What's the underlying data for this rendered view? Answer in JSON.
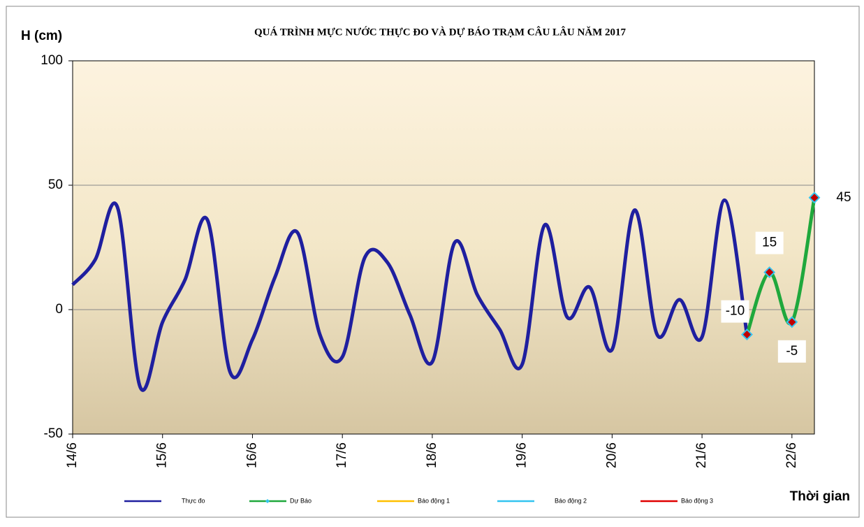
{
  "chart_data": {
    "type": "line",
    "title": "QUÁ TRÌNH MỰC NƯỚC THỰC ĐO VÀ DỰ BÁO TRẠM CÂU LÂU NĂM  2017",
    "y_label": "H (cm)",
    "x_label": "Thời gian",
    "categories": [
      "14/6",
      null,
      null,
      null,
      "15/6",
      null,
      null,
      null,
      "16/6",
      null,
      null,
      null,
      "17/6",
      null,
      null,
      null,
      "18/6",
      null,
      null,
      null,
      "19/6",
      null,
      null,
      null,
      "20/6",
      null,
      null,
      null,
      "21/6",
      null,
      null,
      null,
      "22/6",
      null
    ],
    "series": [
      {
        "name": "Thực đo",
        "color": "#1f1f9f",
        "values": [
          10,
          20,
          41,
          -31,
          -5,
          12,
          36,
          -25,
          -12,
          13,
          31,
          -10,
          -19,
          21,
          19,
          -2,
          -21,
          27,
          6,
          -8,
          -22,
          34,
          -3,
          9,
          -16,
          40,
          -10,
          4,
          -11,
          44,
          -10,
          null,
          null,
          null
        ]
      },
      {
        "name": "Dự Báo",
        "color": "#1fa83c",
        "marker": "diamond",
        "values": [
          null,
          null,
          null,
          null,
          null,
          null,
          null,
          null,
          null,
          null,
          null,
          null,
          null,
          null,
          null,
          null,
          null,
          null,
          null,
          null,
          null,
          null,
          null,
          null,
          null,
          null,
          null,
          null,
          null,
          null,
          -10,
          15,
          -5,
          45
        ]
      },
      {
        "name": "Báo động 1",
        "color": "#ffc000",
        "values": [
          null,
          null,
          null,
          null,
          null,
          null,
          null,
          null,
          null,
          null,
          null,
          null,
          null,
          null,
          null,
          null,
          null,
          null,
          null,
          null,
          null,
          null,
          null,
          null,
          null,
          null,
          null,
          null,
          null,
          null,
          null,
          null,
          null,
          null
        ]
      },
      {
        "name": "Báo động 2",
        "color": "#33c4f0",
        "values": [
          null,
          null,
          null,
          null,
          null,
          null,
          null,
          null,
          null,
          null,
          null,
          null,
          null,
          null,
          null,
          null,
          null,
          null,
          null,
          null,
          null,
          null,
          null,
          null,
          null,
          null,
          null,
          null,
          null,
          null,
          null,
          null,
          null,
          null
        ]
      },
      {
        "name": "Báo động 3",
        "color": "#e00000",
        "values": [
          null,
          null,
          null,
          null,
          null,
          null,
          null,
          null,
          null,
          null,
          null,
          null,
          null,
          null,
          null,
          null,
          null,
          null,
          null,
          null,
          null,
          null,
          null,
          null,
          null,
          null,
          null,
          null,
          null,
          null,
          null,
          null,
          null,
          null
        ]
      }
    ],
    "ylim": [
      -50,
      100
    ],
    "yticks": [
      -50,
      0,
      50,
      100
    ],
    "grid": true,
    "legend": "bottom"
  }
}
